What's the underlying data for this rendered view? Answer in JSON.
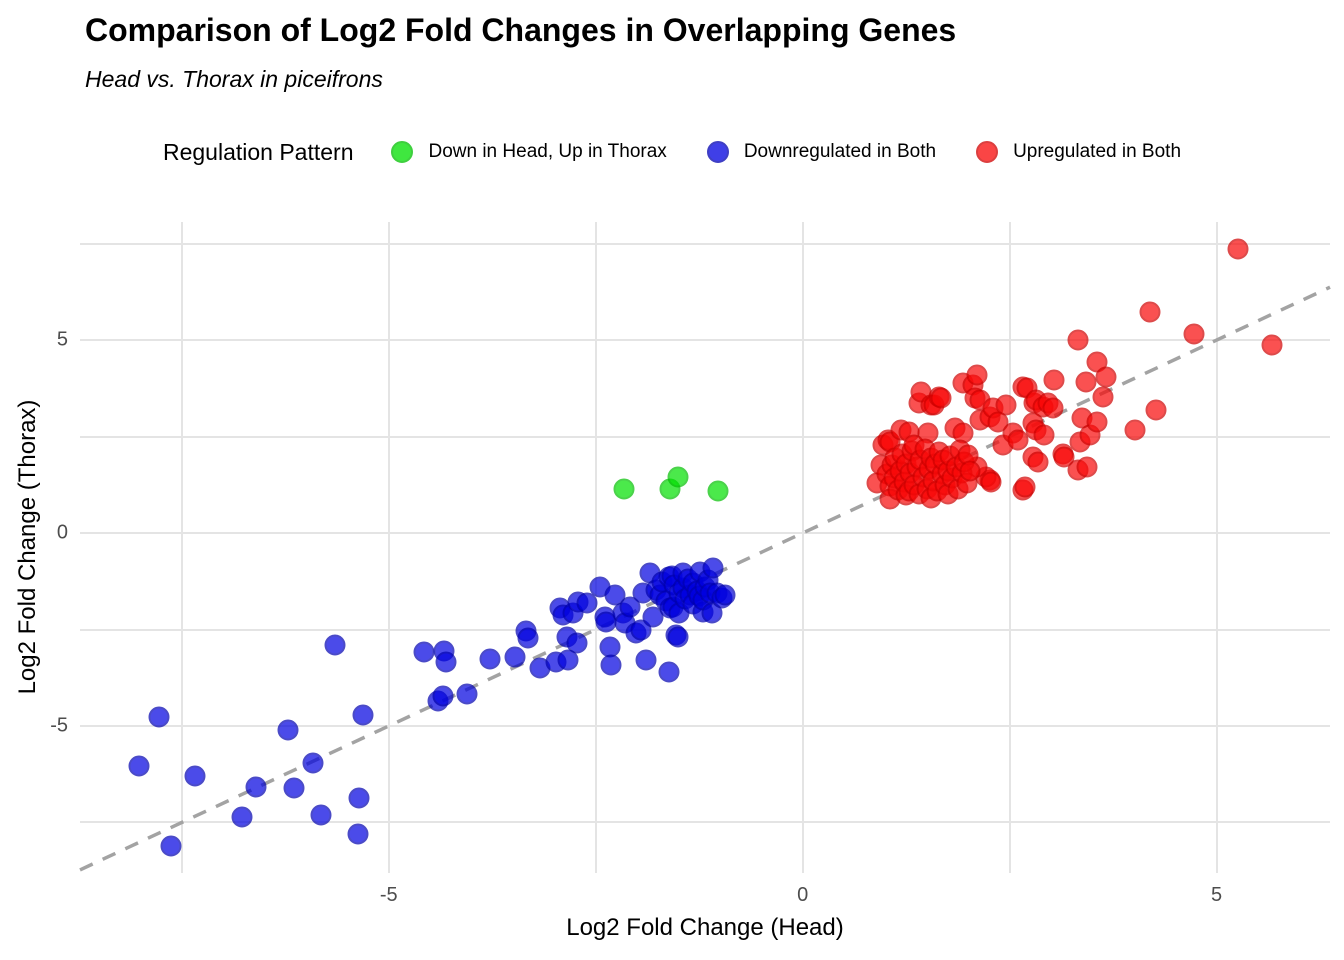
{
  "header": {
    "title": "Comparison of Log2 Fold Changes in Overlapping Genes",
    "subtitle": "Head vs. Thorax in piceifrons"
  },
  "legend": {
    "title": "Regulation Pattern"
  },
  "chart_data": {
    "type": "scatter",
    "title": "Comparison of Log2 Fold Changes in Overlapping Genes",
    "subtitle": "Head vs. Thorax in piceifrons",
    "xlabel": "Log2 Fold Change (Head)",
    "ylabel": "Log2 Fold Change (Thorax)",
    "xlim": [
      -8.73,
      6.37
    ],
    "ylim": [
      -8.81,
      8.06
    ],
    "xticks": [
      -5,
      0,
      5
    ],
    "yticks": [
      -5,
      0,
      5
    ],
    "grid_x": [
      -7.5,
      -5,
      -2.5,
      0,
      2.5,
      5
    ],
    "grid_y": [
      -7.5,
      -5,
      -2.5,
      0,
      2.5,
      5,
      7.5
    ],
    "grid": true,
    "legend_position": "top",
    "gridline_color": "#e4e4e4",
    "reference_line": {
      "slope": 1,
      "intercept": 0,
      "style": "dashed",
      "color": "#a3a3a3",
      "width": 3.5
    },
    "point_opacity": 0.7,
    "series": [
      {
        "name": "Down in Head, Up in Thorax",
        "color": "#00e000",
        "stroke": "#00bf00",
        "points": [
          [
            -2.16,
            1.14
          ],
          [
            -1.6,
            1.15
          ],
          [
            -1.51,
            1.44
          ],
          [
            -1.02,
            1.1
          ]
        ]
      },
      {
        "name": "Downregulated in Both",
        "color": "#0000e0",
        "stroke": "#0000b0",
        "points": [
          [
            -8.02,
            -6.04
          ],
          [
            -7.77,
            -4.78
          ],
          [
            -7.63,
            -8.12
          ],
          [
            -7.34,
            -6.29
          ],
          [
            -6.77,
            -7.36
          ],
          [
            -6.6,
            -6.58
          ],
          [
            -6.22,
            -5.1
          ],
          [
            -6.14,
            -6.61
          ],
          [
            -5.92,
            -5.96
          ],
          [
            -5.82,
            -7.3
          ],
          [
            -5.37,
            -7.81
          ],
          [
            -5.36,
            -6.86
          ],
          [
            -5.31,
            -4.71
          ],
          [
            -5.65,
            -2.9
          ],
          [
            -4.57,
            -3.08
          ],
          [
            -4.4,
            -4.35
          ],
          [
            -4.35,
            -4.22
          ],
          [
            -4.33,
            -3.05
          ],
          [
            -4.31,
            -3.33
          ],
          [
            -4.05,
            -4.18
          ],
          [
            -3.78,
            -3.27
          ],
          [
            -3.47,
            -3.2
          ],
          [
            -3.34,
            -2.53
          ],
          [
            -3.32,
            -2.72
          ],
          [
            -3.17,
            -3.51
          ],
          [
            -2.98,
            -3.33
          ],
          [
            -2.93,
            -1.95
          ],
          [
            -2.89,
            -2.12
          ],
          [
            -2.85,
            -2.7
          ],
          [
            -2.83,
            -3.3
          ],
          [
            -2.77,
            -2.08
          ],
          [
            -2.73,
            -2.86
          ],
          [
            -2.71,
            -1.78
          ],
          [
            -2.61,
            -1.82
          ],
          [
            -2.45,
            -1.39
          ],
          [
            -2.39,
            -2.17
          ],
          [
            -2.38,
            -2.3
          ],
          [
            -2.33,
            -2.95
          ],
          [
            -2.31,
            -3.42
          ],
          [
            -2.27,
            -1.61
          ],
          [
            -2.17,
            -2.08
          ],
          [
            -2.15,
            -2.34
          ],
          [
            -2.09,
            -1.91
          ],
          [
            -2.01,
            -2.6
          ],
          [
            -1.95,
            -2.51
          ],
          [
            -1.93,
            -1.56
          ],
          [
            -1.89,
            -3.29
          ],
          [
            -1.85,
            -1.04
          ],
          [
            -1.81,
            -2.17
          ],
          [
            -1.77,
            -1.48
          ],
          [
            -1.72,
            -1.6
          ],
          [
            -1.7,
            -1.28
          ],
          [
            -1.65,
            -1.75
          ],
          [
            -1.61,
            -3.59
          ],
          [
            -1.61,
            -1.13
          ],
          [
            -1.6,
            -1.95
          ],
          [
            -1.58,
            -1.12
          ],
          [
            -1.57,
            -1.91
          ],
          [
            -1.55,
            -1.35
          ],
          [
            -1.53,
            -2.63
          ],
          [
            -1.51,
            -2.69
          ],
          [
            -1.5,
            -1.55
          ],
          [
            -1.49,
            -2.08
          ],
          [
            -1.45,
            -1.42
          ],
          [
            -1.45,
            -1.04
          ],
          [
            -1.42,
            -1.72
          ],
          [
            -1.38,
            -1.18
          ],
          [
            -1.36,
            -1.61
          ],
          [
            -1.33,
            -1.85
          ],
          [
            -1.32,
            -1.3
          ],
          [
            -1.28,
            -1.5
          ],
          [
            -1.25,
            -1.62
          ],
          [
            -1.24,
            -1.0
          ],
          [
            -1.2,
            -2.04
          ],
          [
            -1.2,
            -1.74
          ],
          [
            -1.18,
            -1.4
          ],
          [
            -1.14,
            -1.22
          ],
          [
            -1.12,
            -1.55
          ],
          [
            -1.1,
            -2.08
          ],
          [
            -1.08,
            -0.91
          ],
          [
            -1.04,
            -1.56
          ],
          [
            -0.98,
            -1.69
          ],
          [
            -0.94,
            -1.6
          ]
        ]
      },
      {
        "name": "Upregulated in Both",
        "color": "#f90808",
        "stroke": "#cf0000",
        "points": [
          [
            0.97,
            2.28
          ],
          [
            1.03,
            2.41
          ],
          [
            1.05,
            2.37
          ],
          [
            1.19,
            2.67
          ],
          [
            1.29,
            2.62
          ],
          [
            1.41,
            3.36
          ],
          [
            1.43,
            3.66
          ],
          [
            1.51,
            2.58
          ],
          [
            1.55,
            3.32
          ],
          [
            1.59,
            3.32
          ],
          [
            1.65,
            3.53
          ],
          [
            1.67,
            3.5
          ],
          [
            1.84,
            2.72
          ],
          [
            1.94,
            3.88
          ],
          [
            1.94,
            2.58
          ],
          [
            2.06,
            3.83
          ],
          [
            2.08,
            3.49
          ],
          [
            2.1,
            4.09
          ],
          [
            2.14,
            3.45
          ],
          [
            2.14,
            2.93
          ],
          [
            2.26,
            3.01
          ],
          [
            2.3,
            3.23
          ],
          [
            2.36,
            2.88
          ],
          [
            2.42,
            2.28
          ],
          [
            2.46,
            3.32
          ],
          [
            2.54,
            2.58
          ],
          [
            2.6,
            2.41
          ],
          [
            2.66,
            3.79
          ],
          [
            2.66,
            1.11
          ],
          [
            2.68,
            1.2
          ],
          [
            2.71,
            3.75
          ],
          [
            2.78,
            2.84
          ],
          [
            2.78,
            1.98
          ],
          [
            2.8,
            3.36
          ],
          [
            2.82,
            3.45
          ],
          [
            2.82,
            2.67
          ],
          [
            2.84,
            1.85
          ],
          [
            2.9,
            3.27
          ],
          [
            2.92,
            2.54
          ],
          [
            2.96,
            3.36
          ],
          [
            3.02,
            3.23
          ],
          [
            3.03,
            3.96
          ],
          [
            3.14,
            2.06
          ],
          [
            3.16,
            1.98
          ],
          [
            3.32,
            5.0
          ],
          [
            3.33,
            1.63
          ],
          [
            3.35,
            2.37
          ],
          [
            3.37,
            2.97
          ],
          [
            3.42,
            3.92
          ],
          [
            3.43,
            1.72
          ],
          [
            3.47,
            2.54
          ],
          [
            3.55,
            4.44
          ],
          [
            3.55,
            2.88
          ],
          [
            3.63,
            3.53
          ],
          [
            3.66,
            4.05
          ],
          [
            4.01,
            2.67
          ],
          [
            4.2,
            5.73
          ],
          [
            4.27,
            3.19
          ],
          [
            4.73,
            5.17
          ],
          [
            5.26,
            7.37
          ],
          [
            5.67,
            4.87
          ],
          [
            2.26,
            1.37
          ],
          [
            2.22,
            1.46
          ],
          [
            2.28,
            1.33
          ],
          [
            2.1,
            1.72
          ],
          [
            0.9,
            1.3
          ],
          [
            0.95,
            1.75
          ],
          [
            1.02,
            1.52
          ],
          [
            1.05,
            1.23
          ],
          [
            1.05,
            0.88
          ],
          [
            1.08,
            1.75
          ],
          [
            1.1,
            1.42
          ],
          [
            1.12,
            1.95
          ],
          [
            1.15,
            1.12
          ],
          [
            1.18,
            1.62
          ],
          [
            1.2,
            2.05
          ],
          [
            1.22,
            1.33
          ],
          [
            1.25,
            1.8
          ],
          [
            1.25,
            0.98
          ],
          [
            1.28,
            1.08
          ],
          [
            1.3,
            1.55
          ],
          [
            1.32,
            2.12
          ],
          [
            1.35,
            1.25
          ],
          [
            1.35,
            2.28
          ],
          [
            1.38,
            1.7
          ],
          [
            1.4,
            1.02
          ],
          [
            1.42,
            1.9
          ],
          [
            1.45,
            1.45
          ],
          [
            1.48,
            2.18
          ],
          [
            1.5,
            1.15
          ],
          [
            1.52,
            1.65
          ],
          [
            1.55,
            1.95
          ],
          [
            1.55,
            0.92
          ],
          [
            1.58,
            1.35
          ],
          [
            1.6,
            1.78
          ],
          [
            1.62,
            1.08
          ],
          [
            1.65,
            2.1
          ],
          [
            1.68,
            1.52
          ],
          [
            1.7,
            1.88
          ],
          [
            1.72,
            1.25
          ],
          [
            1.75,
            1.62
          ],
          [
            1.75,
            1.0
          ],
          [
            1.78,
            2.0
          ],
          [
            1.8,
            1.42
          ],
          [
            1.85,
            1.72
          ],
          [
            1.88,
            1.15
          ],
          [
            1.9,
            2.15
          ],
          [
            1.92,
            1.55
          ],
          [
            1.95,
            1.85
          ],
          [
            1.98,
            1.3
          ],
          [
            2.0,
            2.02
          ],
          [
            2.02,
            1.62
          ]
        ]
      }
    ]
  }
}
